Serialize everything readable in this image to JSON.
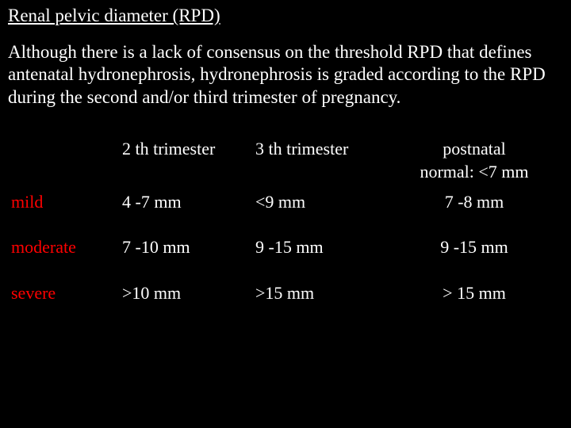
{
  "colors": {
    "background": "#000000",
    "text": "#ffffff",
    "accent": "#ff0000"
  },
  "typography": {
    "font_family": "Georgia, Times New Roman, serif",
    "title_fontsize": 23,
    "body_fontsize": 23,
    "table_fontsize": 22
  },
  "title": "Renal pelvic diameter (RPD)",
  "description": "Although there is a lack of consensus on the threshold RPD that defines antenatal hydronephrosis, hydronephrosis is graded according to the RPD during the second and/or third trimester of pregnancy.",
  "table": {
    "headers": {
      "second_trimester": "2 th trimester",
      "third_trimester": "3 th trimester",
      "postnatal": "postnatal",
      "postnatal_normal": "normal: <7 mm"
    },
    "rows": [
      {
        "label": "mild",
        "second": "4 -7 mm",
        "third": "<9 mm",
        "postnatal": "7 -8 mm"
      },
      {
        "label": "moderate",
        "second": "7 -10 mm",
        "third": "9 -15 mm",
        "postnatal": "9 -15 mm"
      },
      {
        "label": "severe",
        "second": ">10 mm",
        "third": ">15 mm",
        "postnatal": "> 15 mm"
      }
    ]
  }
}
